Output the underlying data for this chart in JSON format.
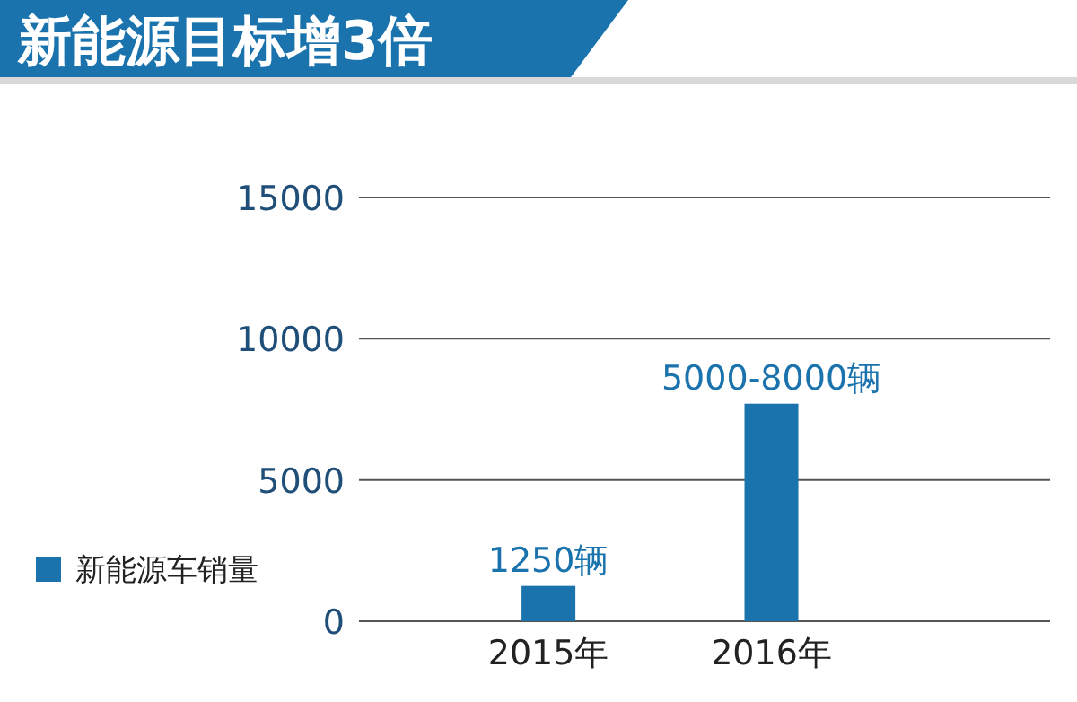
{
  "chart_data": {
    "type": "bar",
    "title": "新能源目标增3倍",
    "categories": [
      "2015年",
      "2016年"
    ],
    "series": [
      {
        "name": "新能源车销量",
        "color": "#1a73ad",
        "values": [
          1250,
          7700
        ],
        "value_labels": [
          "1250辆",
          "5000-8000辆"
        ]
      }
    ],
    "ylim": [
      0,
      15000
    ],
    "yticks": [
      0,
      5000,
      10000,
      15000
    ],
    "grid": "y",
    "legend": "bottom left"
  }
}
